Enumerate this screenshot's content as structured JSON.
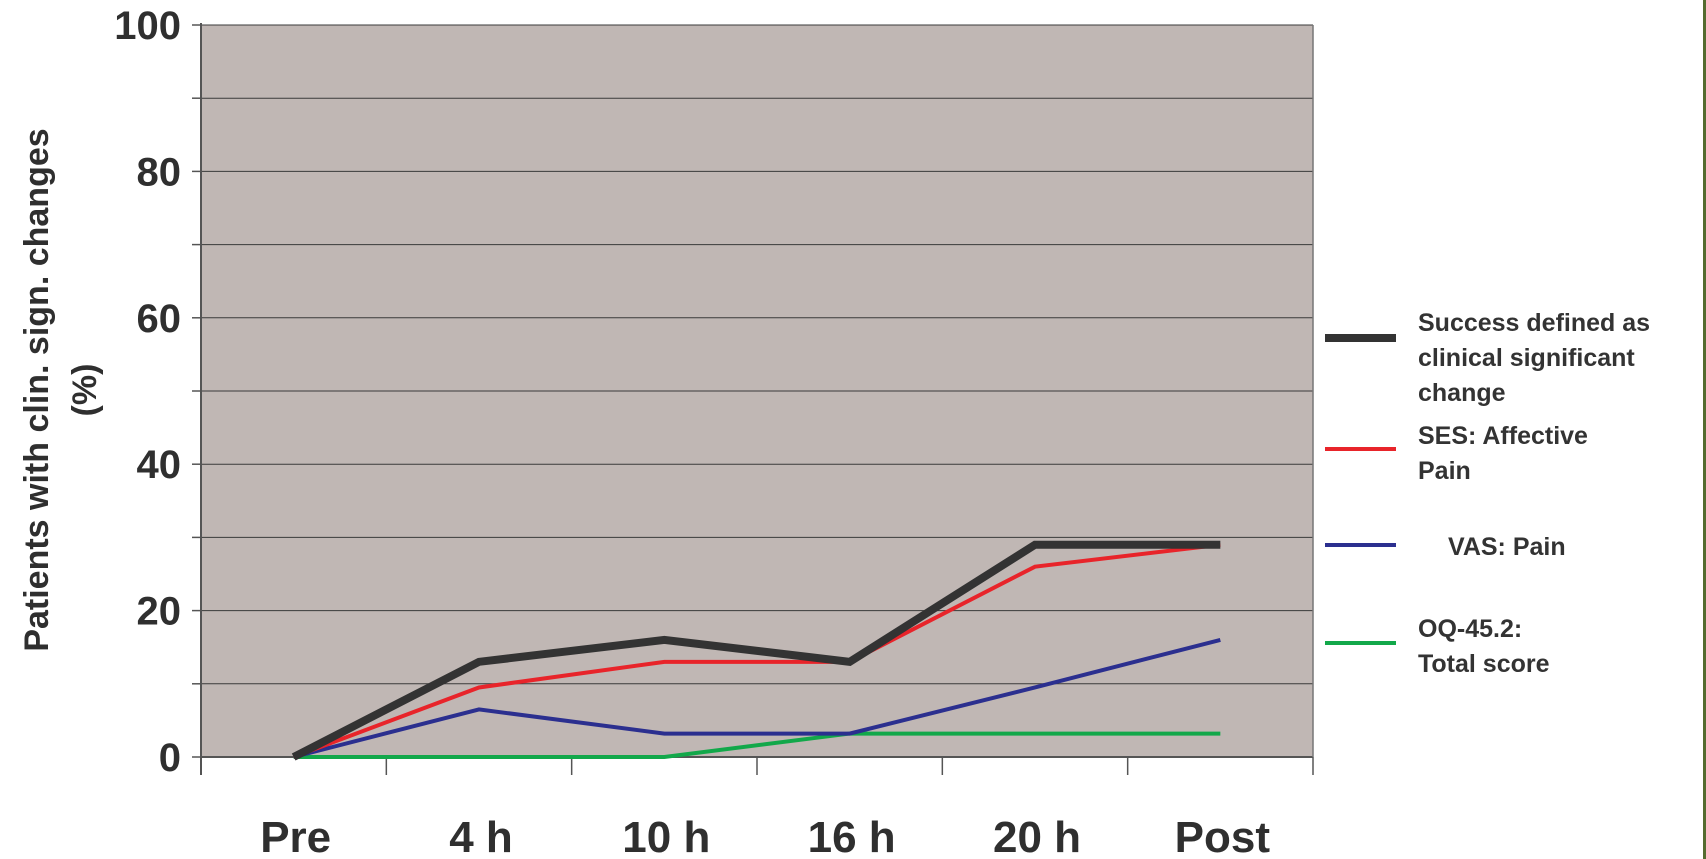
{
  "chart_data": {
    "type": "line",
    "ylabel_lines": [
      "Patients with clin. sign. changes",
      "(%)"
    ],
    "xlabel": "",
    "title": "",
    "categories": [
      "Pre",
      "4 h",
      "10 h",
      "16 h",
      "20 h",
      "Post"
    ],
    "yticks": [
      "0",
      "20",
      "40",
      "60",
      "80",
      "100"
    ],
    "ylim": [
      0,
      100
    ],
    "grid": true,
    "plot_background": "#c0b7b4",
    "legend_position": "right",
    "series": [
      {
        "name_lines": [
          "Success defined as",
          "clinical significant",
          "change"
        ],
        "color": "#333333",
        "values": [
          0,
          13,
          16,
          13,
          29,
          29
        ]
      },
      {
        "name_lines": [
          "SES: Affective",
          "Pain"
        ],
        "color": "#e8242a",
        "values": [
          0,
          9.5,
          13,
          13,
          26,
          29
        ]
      },
      {
        "name_lines": [
          "VAS: Pain"
        ],
        "color": "#2b2f8f",
        "values": [
          0,
          6.5,
          3.2,
          3.2,
          9.5,
          16
        ]
      },
      {
        "name_lines": [
          "OQ-45.2:",
          "Total score"
        ],
        "color": "#12a84a",
        "values": [
          0,
          0,
          0,
          3.2,
          3.2,
          3.2
        ]
      }
    ]
  }
}
